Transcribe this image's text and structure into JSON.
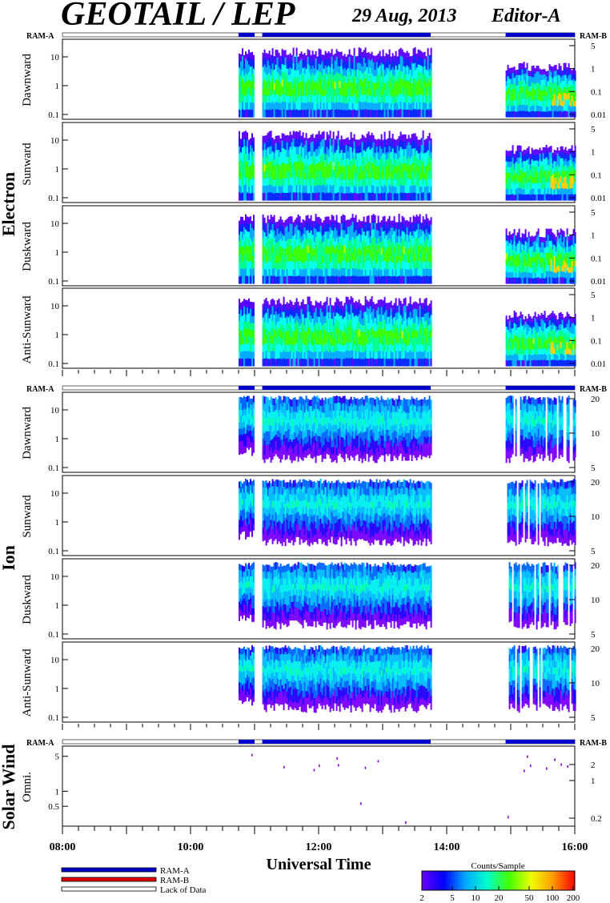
{
  "header": {
    "title": "GEOTAIL / LEP",
    "date": "29 Aug, 2013",
    "editor": "Editor-A"
  },
  "ram": {
    "left": "RAM-A",
    "right": "RAM-B"
  },
  "groups": {
    "electron": "Electron",
    "ion": "Ion",
    "solar_wind": "Solar Wind"
  },
  "panel_labels": {
    "electron": [
      "Dawnward",
      "Sunward",
      "Duskward",
      "Anti-Sunward"
    ],
    "ion": [
      "Dawnward",
      "Sunward",
      "Duskward",
      "Anti-Sunward"
    ],
    "solar_wind": "Omni."
  },
  "x_axis": {
    "title": "Universal Time",
    "ticks": [
      "08:00",
      "10:00",
      "12:00",
      "14:00",
      "16:00"
    ]
  },
  "legend": {
    "items": [
      {
        "label": "RAM-A",
        "color": "#0000cc"
      },
      {
        "label": "RAM-B",
        "color": "#dd0000"
      },
      {
        "label": "Lack of Data",
        "color": "#ffffff"
      }
    ]
  },
  "colorbar": {
    "title": "Counts/Sample",
    "ticks": [
      "2",
      "5",
      "10",
      "20",
      "50",
      "100",
      "200"
    ],
    "colors": [
      "#6a00ff",
      "#0000ff",
      "#00aaff",
      "#00ffcc",
      "#44ff00",
      "#eeff00",
      "#ff9900",
      "#ff0000"
    ]
  },
  "chart_data": {
    "type": "heatmap",
    "x_range_hours": [
      8,
      16
    ],
    "data_intervals_hours": [
      [
        10.75,
        11.0
      ],
      [
        11.12,
        13.75
      ],
      [
        14.92,
        16.0
      ]
    ],
    "electron": {
      "left_ticks": [
        "10",
        "1",
        "0.1"
      ],
      "right_ticks": [
        "5",
        "1",
        "0.1",
        "0.01"
      ]
    },
    "ion": {
      "left_ticks": [
        "10",
        "1",
        "0.1"
      ],
      "right_ticks": [
        "20",
        "10",
        "5"
      ]
    },
    "solar_wind": {
      "left_ticks": [
        "5",
        "1",
        "0.5"
      ],
      "right_ticks": [
        "2",
        "1",
        "0.2"
      ],
      "points": [
        [
          10.95,
          5.6
        ],
        [
          11.45,
          3.2
        ],
        [
          11.92,
          2.8
        ],
        [
          12.0,
          3.4
        ],
        [
          12.28,
          4.8
        ],
        [
          12.65,
          0.6
        ],
        [
          12.92,
          4.2
        ],
        [
          12.3,
          3.5
        ],
        [
          12.72,
          3.1
        ],
        [
          13.35,
          0.25
        ],
        [
          14.95,
          0.32
        ],
        [
          15.2,
          2.7
        ],
        [
          15.25,
          5.2
        ],
        [
          15.3,
          3.4
        ],
        [
          15.55,
          3.0
        ],
        [
          15.68,
          4.5
        ],
        [
          15.78,
          3.6
        ],
        [
          15.88,
          3.3
        ]
      ]
    }
  }
}
